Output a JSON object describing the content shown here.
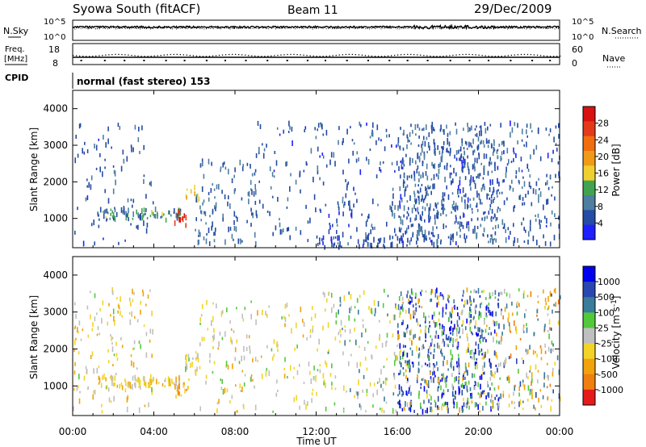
{
  "header": {
    "station": "Syowa South (fitACF)",
    "beam": "Beam 11",
    "date": "29/Dec/2009"
  },
  "noise_panel": {
    "left_label": "N.Sky",
    "left_ticks": [
      "10^5",
      "10^0"
    ],
    "right_ticks": [
      "10^5",
      "10^0"
    ],
    "right_label": "N.Search"
  },
  "freq_panel": {
    "left_label_top": "Freq.",
    "left_label_unit": "[MHz]",
    "left_ticks": [
      "18",
      "8"
    ],
    "right_ticks": [
      "60",
      "0"
    ],
    "right_label": "Nave",
    "cpid_label": "CPID",
    "mode_text": "normal (fast stereo) 153"
  },
  "x_axis": {
    "ticks": [
      "00:00",
      "04:00",
      "08:00",
      "12:00",
      "16:00",
      "20:00",
      "00:00"
    ],
    "label": "Time UT"
  },
  "colors": {
    "power_scale": [
      "#1f1fff",
      "#244ba5",
      "#4e7ea0",
      "#41a34f",
      "#f0d030",
      "#f09b17",
      "#f06d10",
      "#e33a1a",
      "#d81111"
    ],
    "velocity_scale": [
      "#0000ee",
      "#2a46b0",
      "#3b7b9b",
      "#52c93a",
      "#bfbfbf",
      "#f2d428",
      "#f0a30c",
      "#f07e10",
      "#e51b1b"
    ]
  },
  "chart_data": [
    {
      "type": "heatmap",
      "panel": "power",
      "ylabel": "Slant Range [km]",
      "yticks": [
        "1000",
        "2000",
        "3000",
        "4000"
      ],
      "ylim": [
        200,
        4500
      ],
      "xlim_hours": [
        0,
        24
      ],
      "colorbar": {
        "label": "Power [dB]",
        "ticks": [
          "4",
          "8",
          "12",
          "16",
          "20",
          "24",
          "28"
        ],
        "range": [
          0,
          30
        ]
      },
      "clusters": [
        {
          "t": [
            0.0,
            4.0
          ],
          "r": [
            300,
            3600
          ],
          "n": 90,
          "v": [
            3,
            8
          ]
        },
        {
          "t": [
            1.2,
            5.3
          ],
          "r": [
            950,
            1250
          ],
          "n": 70,
          "v": [
            3,
            14
          ]
        },
        {
          "t": [
            5.0,
            5.6
          ],
          "r": [
            800,
            1200
          ],
          "n": 12,
          "v": [
            24,
            30
          ]
        },
        {
          "t": [
            5.5,
            6.2
          ],
          "r": [
            1450,
            1850
          ],
          "n": 14,
          "v": [
            12,
            17
          ]
        },
        {
          "t": [
            6.0,
            9.0
          ],
          "r": [
            300,
            2600
          ],
          "n": 110,
          "v": [
            4,
            10
          ]
        },
        {
          "t": [
            9.0,
            12.0
          ],
          "r": [
            300,
            3600
          ],
          "n": 70,
          "v": [
            3,
            8
          ]
        },
        {
          "t": [
            12.0,
            16.0
          ],
          "r": [
            300,
            3600
          ],
          "n": 140,
          "v": [
            3,
            8
          ]
        },
        {
          "t": [
            16.0,
            21.0
          ],
          "r": [
            300,
            3600
          ],
          "n": 560,
          "v": [
            3,
            9
          ]
        },
        {
          "t": [
            21.0,
            24.0
          ],
          "r": [
            300,
            3600
          ],
          "n": 160,
          "v": [
            3,
            9
          ]
        },
        {
          "t": [
            12.0,
            18.0
          ],
          "r": [
            200,
            500
          ],
          "n": 60,
          "v": [
            3,
            7
          ]
        }
      ]
    },
    {
      "type": "heatmap",
      "panel": "velocity",
      "ylabel": "Slant Range [km]",
      "yticks": [
        "1000",
        "2000",
        "3000",
        "4000"
      ],
      "ylim": [
        200,
        4500
      ],
      "xlim_hours": [
        0,
        24
      ],
      "colorbar": {
        "label": "Velocity [m s^-1]",
        "ticks": [
          "1000",
          "500",
          "100",
          "25",
          "-25",
          "-100",
          "-500",
          "-1000"
        ],
        "range": [
          -1200,
          1200
        ]
      },
      "clusters": [
        {
          "t": [
            0.0,
            4.0
          ],
          "r": [
            300,
            3600
          ],
          "n": 140,
          "v": [
            -600,
            200
          ]
        },
        {
          "t": [
            1.2,
            5.3
          ],
          "r": [
            950,
            1250
          ],
          "n": 80,
          "v": [
            -500,
            -50
          ]
        },
        {
          "t": [
            5.0,
            5.7
          ],
          "r": [
            700,
            1250
          ],
          "n": 18,
          "v": [
            -700,
            -200
          ]
        },
        {
          "t": [
            5.5,
            6.3
          ],
          "r": [
            1400,
            1900
          ],
          "n": 18,
          "v": [
            -300,
            200
          ]
        },
        {
          "t": [
            6.0,
            12.0
          ],
          "r": [
            300,
            3300
          ],
          "n": 170,
          "v": [
            -500,
            300
          ]
        },
        {
          "t": [
            12.0,
            16.0
          ],
          "r": [
            300,
            3600
          ],
          "n": 160,
          "v": [
            -400,
            600
          ]
        },
        {
          "t": [
            16.0,
            21.0
          ],
          "r": [
            300,
            3600
          ],
          "n": 480,
          "v": [
            200,
            1200
          ]
        },
        {
          "t": [
            16.0,
            21.0
          ],
          "r": [
            300,
            3600
          ],
          "n": 160,
          "v": [
            -600,
            200
          ]
        },
        {
          "t": [
            21.0,
            24.0
          ],
          "r": [
            300,
            3600
          ],
          "n": 180,
          "v": [
            -800,
            800
          ]
        }
      ]
    }
  ]
}
